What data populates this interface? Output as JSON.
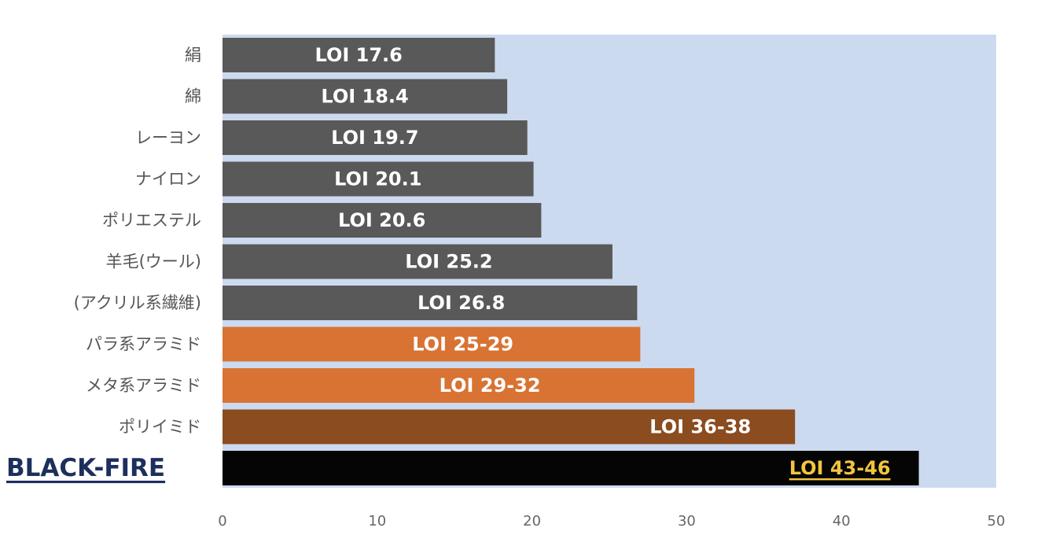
{
  "chart_data": {
    "type": "bar",
    "orientation": "horizontal",
    "title": "",
    "xlabel": "",
    "ylabel": "",
    "xlim": [
      0,
      50
    ],
    "x_ticks": [
      "0",
      "10",
      "20",
      "30",
      "40",
      "50"
    ],
    "grid": false,
    "legend": "none",
    "categories": [
      "絹",
      "綿",
      "レーヨン",
      "ナイロン",
      "ポリエステル",
      "羊毛(ウール)",
      "(アクリル系繊維)",
      "パラ系アラミド",
      "メタ系アラミド",
      "ポリイミド",
      "BLACK-FIRE"
    ],
    "values": [
      17.6,
      18.4,
      19.7,
      20.1,
      20.6,
      25.2,
      26.8,
      27,
      30.5,
      37,
      45
    ],
    "data_labels": [
      "LOI 17.6",
      "LOI 18.4",
      "LOI 19.7",
      "LOI 20.1",
      "LOI 20.6",
      "LOI 25.2",
      "LOI 26.8",
      "LOI 25-29",
      "LOI 29-32",
      "LOI 36-38",
      "LOI 43-46"
    ],
    "bar_colors": [
      "#595959",
      "#595959",
      "#595959",
      "#595959",
      "#595959",
      "#595959",
      "#595959",
      "#d87333",
      "#d87333",
      "#8b4c1f",
      "#050505"
    ],
    "plot_background": "#ccdaf0",
    "highlight_index": 10,
    "highlight_label_color": "#1d2f5c",
    "highlight_value_color": "#f2c53d"
  }
}
